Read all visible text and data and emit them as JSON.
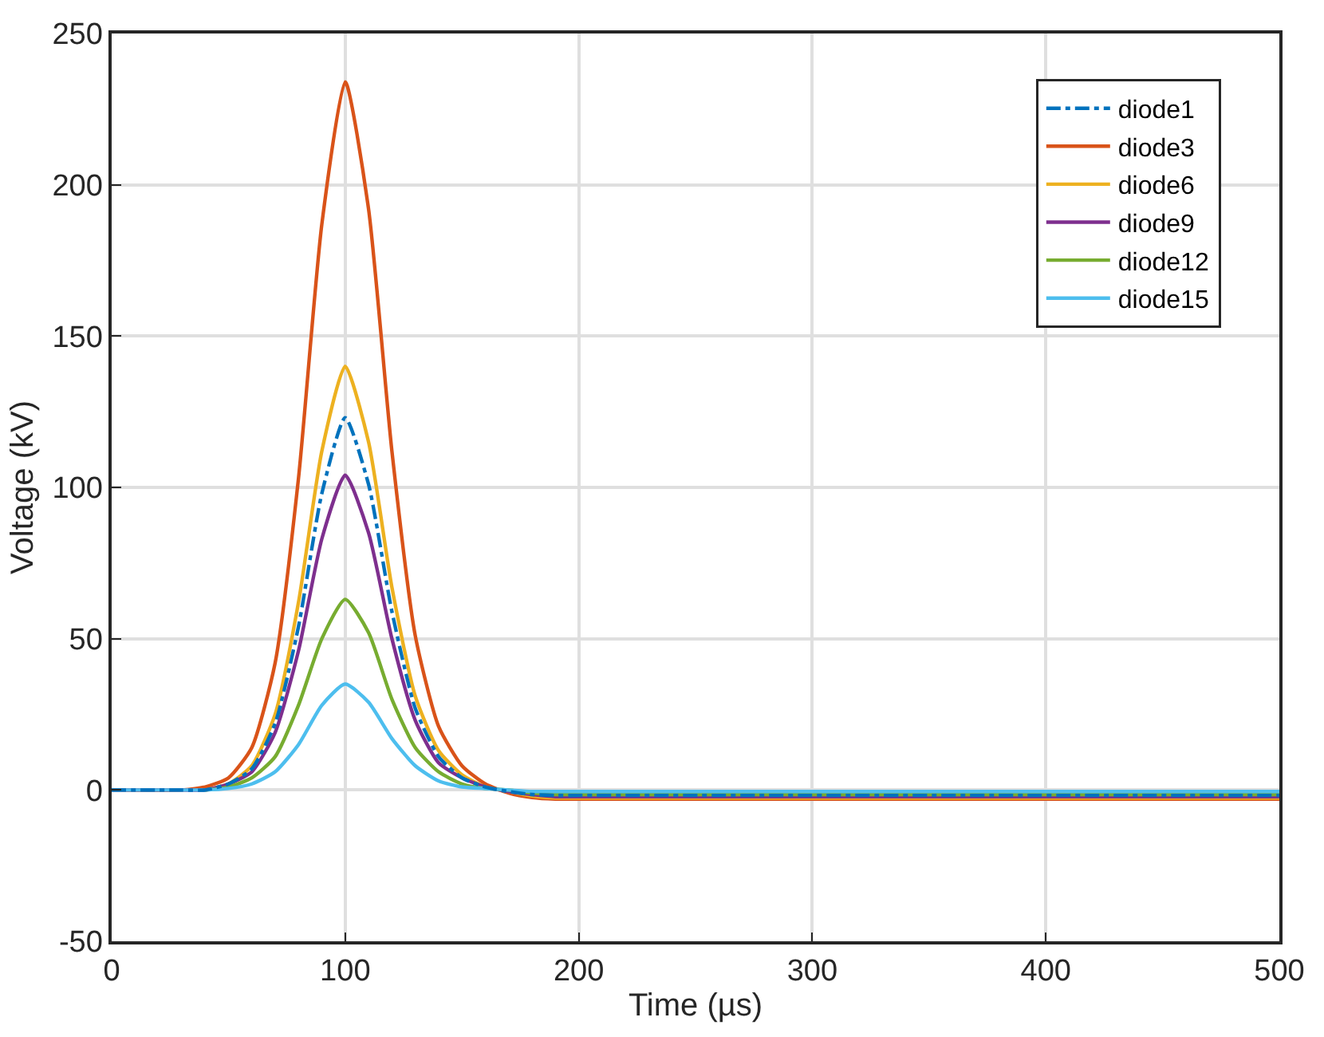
{
  "chart_data": {
    "type": "line",
    "xlabel": "Time (µs)",
    "ylabel": "Voltage (kV)",
    "x": [
      0,
      30,
      40,
      50,
      60,
      70,
      80,
      90,
      100,
      110,
      120,
      130,
      140,
      150,
      160,
      170,
      180,
      190,
      200,
      500
    ],
    "series": [
      {
        "name": "diode1",
        "color": "#0072bd",
        "line_style": "dashdot",
        "values": [
          0,
          0,
          0,
          2,
          7,
          22,
          54,
          98,
          123,
          101,
          59,
          27,
          11,
          4,
          1,
          -0.5,
          -1.5,
          -1.8,
          -1.8,
          -1.8
        ]
      },
      {
        "name": "diode3",
        "color": "#d95319",
        "values": [
          0,
          0,
          1,
          4,
          14,
          42,
          103,
          187,
          234,
          192,
          112,
          51,
          21,
          8,
          2,
          -1,
          -2.5,
          -3,
          -3,
          -3
        ]
      },
      {
        "name": "diode6",
        "color": "#edb120",
        "values": [
          null,
          null,
          0,
          2,
          8,
          25,
          62,
          112,
          140,
          115,
          67,
          31,
          13,
          5,
          1,
          -0.5,
          -2,
          -2.6,
          -2.6,
          -2.6
        ]
      },
      {
        "name": "diode9",
        "color": "#7e2f8e",
        "values": [
          0,
          0,
          0,
          2,
          6,
          19,
          46,
          83,
          104,
          85,
          50,
          23,
          9,
          4,
          1,
          -0.5,
          -1.5,
          -2.2,
          -2.2,
          -2.2
        ]
      },
      {
        "name": "diode12",
        "color": "#77ac30",
        "values": [
          null,
          null,
          0,
          1,
          4,
          11,
          28,
          50,
          63,
          52,
          30,
          14,
          6,
          2,
          0.5,
          0,
          -1,
          -1.5,
          -1.5,
          -1.5
        ]
      },
      {
        "name": "diode15",
        "color": "#4dbeee",
        "values": [
          0,
          0,
          0,
          0.5,
          2,
          6,
          15,
          28,
          35,
          29,
          17,
          8,
          3,
          1,
          0.5,
          0,
          -0.5,
          -0.5,
          -0.5,
          -0.5
        ]
      }
    ],
    "xlim": [
      0,
      500
    ],
    "xticks": [
      0,
      100,
      200,
      300,
      400,
      500
    ],
    "ylim": [
      -50,
      250
    ],
    "yticks": [
      -50,
      0,
      50,
      100,
      150,
      200,
      250
    ],
    "grid": true,
    "legend": "top right",
    "line_style": "solid",
    "marker": "none"
  }
}
